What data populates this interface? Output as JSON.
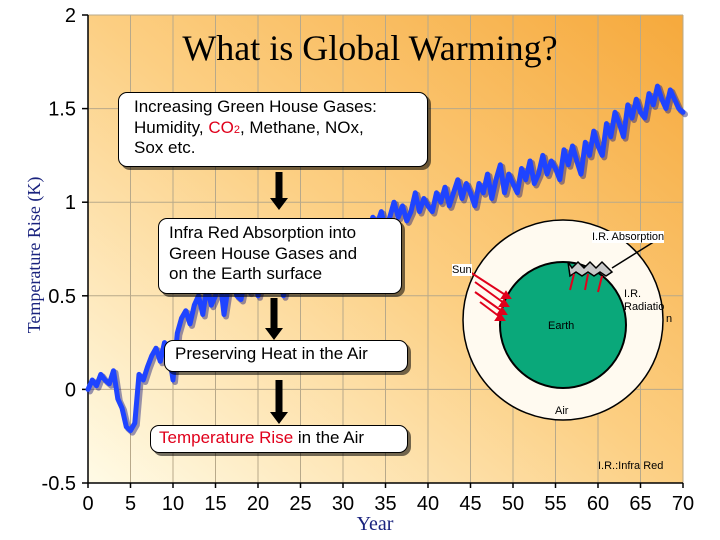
{
  "chart_data": {
    "type": "line",
    "title": "What is Global Warming?",
    "xlabel": "Year",
    "ylabel": "Temperature Rise (K)",
    "xlim": [
      0,
      70
    ],
    "ylim": [
      -0.5,
      2
    ],
    "xticks": [
      "0",
      "5",
      "10",
      "15",
      "20",
      "25",
      "30",
      "35",
      "40",
      "45",
      "50",
      "55",
      "60",
      "65",
      "70"
    ],
    "yticks": [
      "-0.5",
      "0",
      "0.5",
      "1",
      "1.5",
      "2"
    ],
    "grid": true,
    "series": [
      {
        "color": "#1f44ff",
        "x": [
          0,
          0.5,
          1,
          1.5,
          2,
          2.5,
          3,
          3.5,
          4,
          4.5,
          5,
          5.5,
          6,
          6.5,
          7,
          7.5,
          8,
          8.5,
          9,
          9.5,
          10,
          10.5,
          11,
          11.5,
          12,
          12.5,
          13,
          13.5,
          14,
          14.5,
          15,
          15.5,
          16,
          16.5,
          17,
          17.5,
          18,
          18.5,
          19,
          19.5,
          20,
          20.5,
          21,
          21.5,
          22,
          22.5,
          23,
          23.5,
          24,
          24.5,
          25,
          25.5,
          26,
          26.5,
          27,
          27.5,
          28,
          28.5,
          29,
          29.5,
          30,
          30.5,
          31,
          31.5,
          32,
          32.5,
          33,
          33.5,
          34,
          34.5,
          35,
          35.5,
          36,
          36.5,
          37,
          37.5,
          38,
          38.5,
          39,
          39.5,
          40,
          40.5,
          41,
          41.5,
          42,
          42.5,
          43,
          43.5,
          44,
          44.5,
          45,
          45.5,
          46,
          46.5,
          47,
          47.5,
          48,
          48.5,
          49,
          49.5,
          50,
          50.5,
          51,
          51.5,
          52,
          52.5,
          53,
          53.5,
          54,
          54.5,
          55,
          55.5,
          56,
          56.5,
          57,
          57.5,
          58,
          58.5,
          59,
          59.5,
          60,
          60.5,
          61,
          61.5,
          62,
          62.5,
          63,
          63.5,
          64,
          64.5,
          65,
          65.5,
          66,
          66.5,
          67,
          67.5,
          68,
          68.5,
          69,
          69.5,
          70
        ],
        "y": [
          0.0,
          0.05,
          0.02,
          0.08,
          0.05,
          0.03,
          0.1,
          -0.05,
          -0.1,
          -0.2,
          -0.22,
          -0.18,
          0.08,
          0.05,
          0.12,
          0.18,
          0.22,
          0.15,
          0.25,
          0.2,
          0.05,
          0.3,
          0.38,
          0.42,
          0.35,
          0.45,
          0.5,
          0.4,
          0.55,
          0.45,
          0.5,
          0.6,
          0.4,
          0.55,
          0.62,
          0.5,
          0.48,
          0.6,
          0.52,
          0.65,
          0.5,
          0.6,
          0.66,
          0.58,
          0.7,
          0.6,
          0.5,
          0.62,
          0.68,
          0.55,
          0.72,
          0.6,
          0.65,
          0.75,
          0.7,
          0.8,
          0.68,
          0.72,
          0.82,
          0.75,
          0.85,
          0.7,
          0.78,
          0.88,
          0.8,
          0.9,
          0.82,
          0.92,
          0.88,
          0.95,
          0.85,
          0.92,
          1.0,
          0.92,
          0.98,
          0.9,
          0.95,
          1.05,
          0.95,
          1.02,
          0.98,
          0.95,
          1.05,
          1.0,
          1.08,
          0.98,
          1.05,
          1.12,
          1.02,
          1.1,
          1.05,
          0.98,
          1.1,
          1.05,
          1.15,
          1.02,
          1.12,
          1.2,
          1.05,
          1.15,
          1.1,
          1.05,
          1.18,
          1.12,
          1.22,
          1.1,
          1.15,
          1.25,
          1.15,
          1.22,
          1.18,
          1.12,
          1.28,
          1.2,
          1.3,
          1.22,
          1.15,
          1.32,
          1.25,
          1.38,
          1.3,
          1.25,
          1.42,
          1.35,
          1.48,
          1.42,
          1.35,
          1.52,
          1.45,
          1.55,
          1.48,
          1.45,
          1.58,
          1.52,
          1.62,
          1.55,
          1.5,
          1.6,
          1.55,
          1.5,
          1.48
        ]
      }
    ]
  },
  "boxes": {
    "greenhouse": [
      "Increasing Green House Gases:",
      "Humidity, ",
      "CO",
      "2",
      ", Methane,  NOx,",
      "Sox etc."
    ],
    "absorption": [
      "Infra Red Absorption into",
      "Green House Gases and",
      "on the Earth surface"
    ],
    "preserving": "Preserving Heat in the Air",
    "temp_rise": [
      "Temperature Rise",
      " in the Air"
    ]
  },
  "diagram": {
    "ir_absorption": "I.R. Absorption",
    "sun": "Sun",
    "ir_radiation": [
      "I.R.",
      "Radiatio",
      "n"
    ],
    "earth": "Earth",
    "air": "Air",
    "ir_note": "I.R.:Infra Red"
  },
  "colors": {
    "line": "#1f44ff",
    "accent_red": "#e0001b",
    "earth": "#0aa87a",
    "bg_light": "#fffbe6",
    "bg_dark": "#f6a93c"
  }
}
